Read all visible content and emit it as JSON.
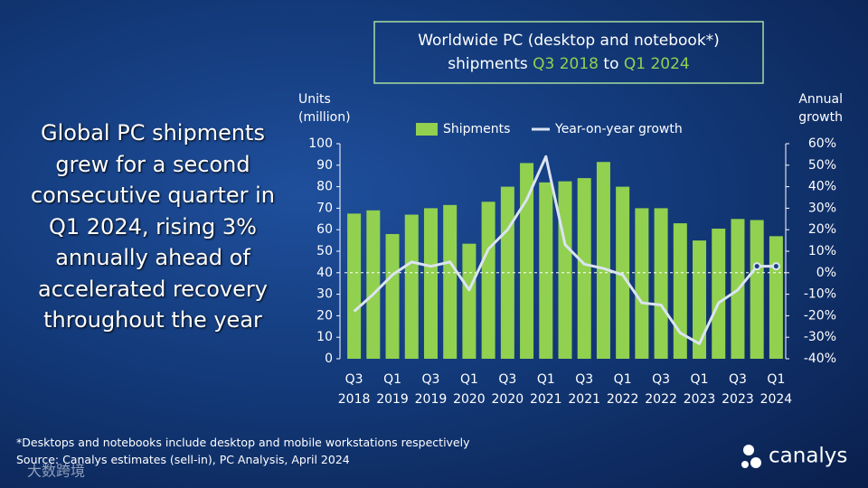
{
  "headline": "Global PC shipments grew for a second consecutive quarter in Q1 2024, rising 3% annually ahead of accelerated recovery throughout the year",
  "footnote": "*Desktops and notebooks include desktop and mobile workstations respectively",
  "source": "Source: Canalys estimates (sell-in), PC Analysis, April 2024",
  "logo": "canalys",
  "watermark": "大数跨境",
  "chart_data": {
    "type": "bar_line",
    "title_line1": "Worldwide PC (desktop and notebook*)",
    "title_line2": [
      "shipments ",
      "Q3 2018",
      " to ",
      "Q1 2024"
    ],
    "y_label": "Units (million)",
    "y2_label": "Annual growth",
    "categories": [
      "Q3 2018",
      null,
      "Q1 2019",
      null,
      "Q3 2019",
      null,
      "Q1 2020",
      null,
      "Q3 2020",
      null,
      "Q1 2021",
      null,
      "Q3 2021",
      null,
      "Q1 2022",
      null,
      "Q3 2022",
      null,
      "Q1 2023",
      null,
      "Q3 2023",
      null,
      "Q1 2024"
    ],
    "series": [
      {
        "name": "Shipments",
        "color": "#92d050",
        "values": [
          67.5,
          69,
          58,
          67,
          70,
          71.5,
          53.5,
          73,
          80,
          91,
          82,
          82.5,
          84,
          91.5,
          80,
          70,
          70,
          63,
          55,
          60.5,
          65,
          64.5,
          57
        ]
      },
      {
        "name": "Year-on-year growth",
        "color": "#dce4f2",
        "axis": "y2",
        "values": [
          -18,
          -10,
          -1,
          5,
          3,
          5,
          -8,
          11,
          20,
          34,
          54,
          13,
          4,
          2,
          -1,
          -14,
          -15,
          -28,
          -33,
          -14,
          -8,
          3,
          3
        ]
      }
    ],
    "ylim": [
      0,
      100
    ],
    "yticks": [
      0,
      10,
      20,
      30,
      40,
      50,
      60,
      70,
      80,
      90,
      100
    ],
    "y2lim": [
      -40,
      60
    ],
    "y2ticks": [
      {
        "value": -40,
        "label": "-40%"
      },
      {
        "value": -30,
        "label": "-30%"
      },
      {
        "value": -20,
        "label": "-20%"
      },
      {
        "value": -10,
        "label": "-10%"
      },
      {
        "value": 0,
        "label": "0%"
      },
      {
        "value": 10,
        "label": "10%"
      },
      {
        "value": 20,
        "label": "20%"
      },
      {
        "value": 30,
        "label": "30%"
      },
      {
        "value": 40,
        "label": "40%"
      },
      {
        "value": 50,
        "label": "50%"
      },
      {
        "value": 60,
        "label": "60%"
      }
    ],
    "y2_zero_line": true
  }
}
